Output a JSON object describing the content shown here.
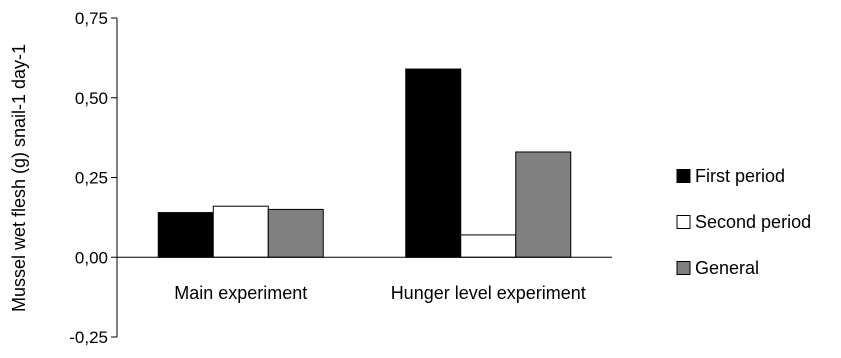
{
  "chart_data": {
    "type": "bar",
    "title": "",
    "xlabel": "",
    "ylabel": "Mussel wet flesh (g)  snail-1 day-1",
    "ylim": [
      -0.25,
      0.75
    ],
    "yticks": [
      "0,75",
      "0,50",
      "0,25",
      "0,00",
      "-0,25"
    ],
    "ytick_values": [
      0.75,
      0.5,
      0.25,
      0.0,
      -0.25
    ],
    "grid": false,
    "legend_position": "right",
    "categories": [
      "Main experiment",
      "Hunger level experiment"
    ],
    "series": [
      {
        "name": "First period",
        "values": [
          0.14,
          0.59
        ],
        "color": "#000000"
      },
      {
        "name": "Second period",
        "values": [
          0.16,
          0.07
        ],
        "color": "#ffffff"
      },
      {
        "name": "General",
        "values": [
          0.15,
          0.33
        ],
        "color": "#808080"
      }
    ]
  }
}
